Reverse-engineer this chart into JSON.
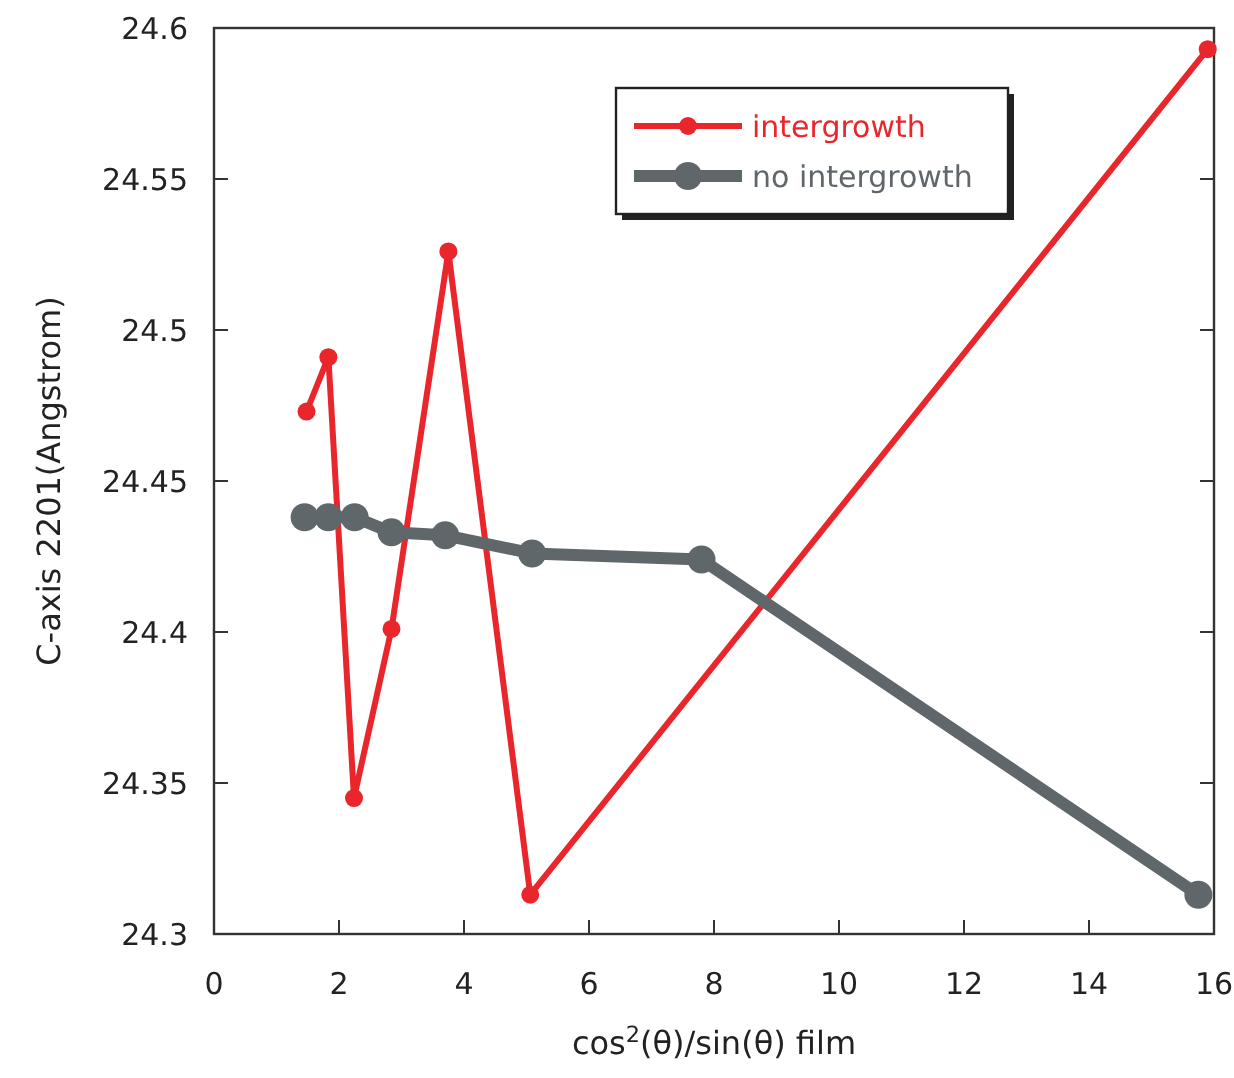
{
  "chart_data": {
    "type": "line",
    "xlabel": "cos$^{2}$(θ)/sin(θ) film",
    "ylabel": "C-axis 2201(Angstrom)",
    "xlim": [
      0,
      16
    ],
    "xticks": [
      0,
      2,
      4,
      6,
      8,
      10,
      12,
      14,
      16
    ],
    "ylim": [
      24.3,
      24.6
    ],
    "yticks": [
      24.3,
      24.35,
      24.4,
      24.45,
      24.5,
      24.55,
      24.6
    ],
    "grid": false,
    "legend": "top right",
    "marker": "circle",
    "line_style": "solid",
    "series": [
      {
        "name": "intergrowth",
        "color": "#e8262b",
        "x": [
          1.48,
          1.83,
          2.24,
          2.84,
          3.75,
          5.06,
          15.9
        ],
        "values": [
          24.473,
          24.491,
          24.345,
          24.401,
          24.526,
          24.313,
          24.593
        ]
      },
      {
        "name": "no intergrowth",
        "color": "#5f676b",
        "x": [
          1.45,
          1.83,
          2.25,
          2.84,
          3.7,
          5.09,
          7.8,
          15.75
        ],
        "values": [
          24.438,
          24.438,
          24.438,
          24.433,
          24.432,
          24.426,
          24.424,
          24.313
        ]
      }
    ]
  }
}
